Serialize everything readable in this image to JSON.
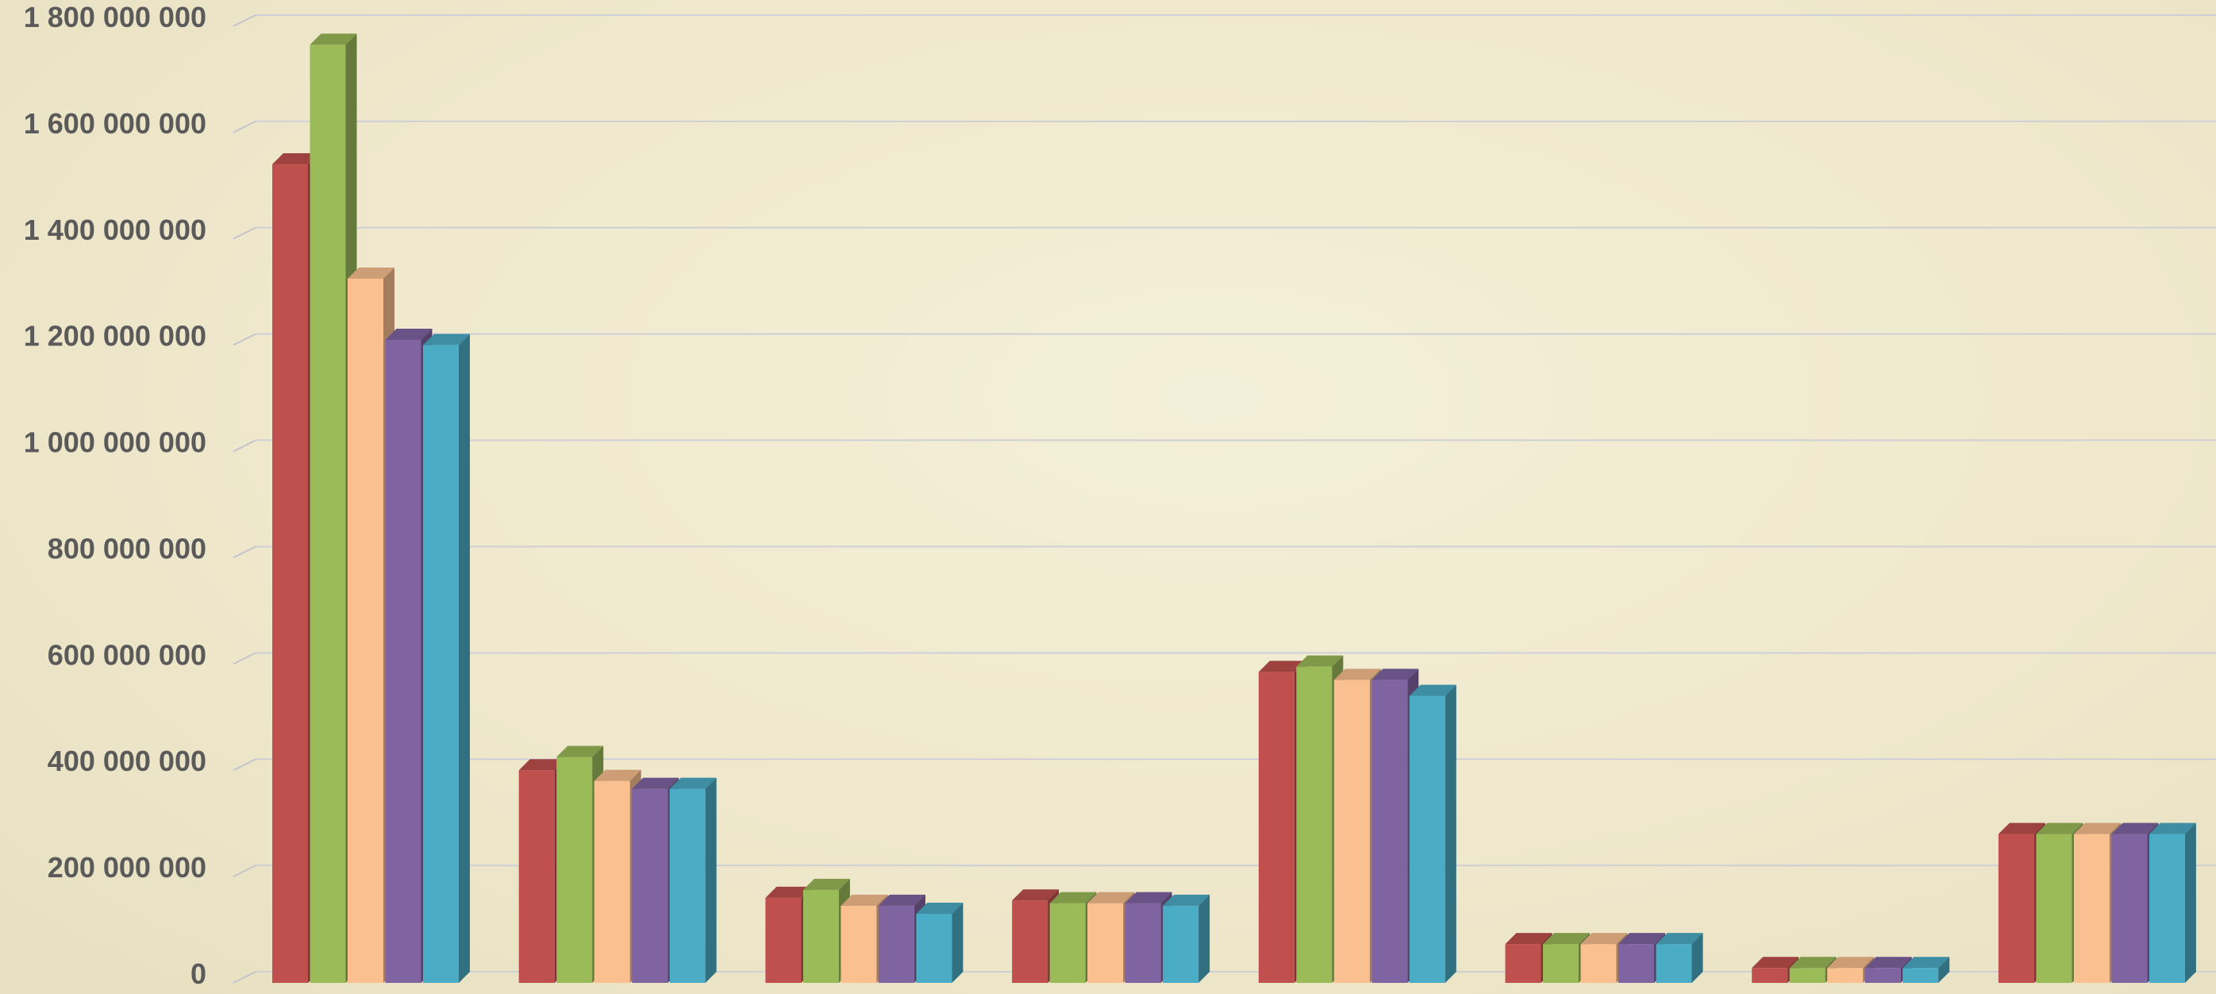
{
  "chart_data": {
    "type": "bar",
    "style": "3d-clustered-columns",
    "title": "",
    "xlabel": "",
    "ylabel": "",
    "ylim": [
      0,
      1800000000
    ],
    "y_ticks": [
      0,
      200000000,
      400000000,
      600000000,
      800000000,
      1000000000,
      1200000000,
      1400000000,
      1600000000,
      1800000000
    ],
    "y_tick_labels": [
      "0",
      "200 000 000",
      "400 000 000",
      "600 000 000",
      "800 000 000",
      "1 000 000 000",
      "1 200 000 000",
      "1 400 000 000",
      "1 600 000 000",
      "1 800 000 000"
    ],
    "grid": true,
    "legend": "none",
    "category_count": 8,
    "categories": [
      "",
      "",
      "",
      "",
      "",
      "",
      "",
      ""
    ],
    "series": [
      {
        "color": "#c0504d",
        "values": [
          1540000000,
          400000000,
          160000000,
          155000000,
          585000000,
          73000000,
          28000000,
          280000000
        ]
      },
      {
        "color": "#9bbb59",
        "values": [
          1765000000,
          425000000,
          175000000,
          150000000,
          595000000,
          73000000,
          28000000,
          280000000
        ]
      },
      {
        "color": "#fac090",
        "values": [
          1325000000,
          380000000,
          145000000,
          150000000,
          570000000,
          73000000,
          28000000,
          280000000
        ]
      },
      {
        "color": "#8064a2",
        "values": [
          1210000000,
          365000000,
          145000000,
          150000000,
          570000000,
          73000000,
          28000000,
          280000000
        ]
      },
      {
        "color": "#4bacc6",
        "values": [
          1200000000,
          365000000,
          130000000,
          145000000,
          540000000,
          73000000,
          28000000,
          280000000
        ]
      }
    ]
  }
}
